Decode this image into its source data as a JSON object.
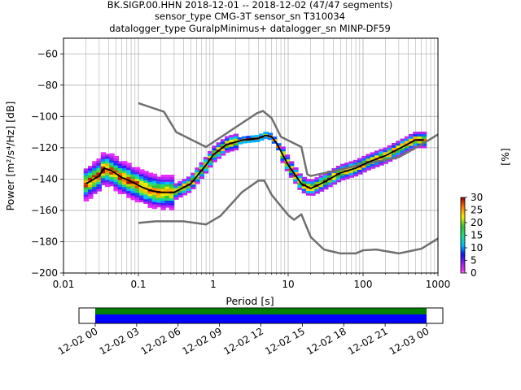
{
  "chart_data": {
    "type": "heatmap",
    "title": {
      "line1": "BK.SIGP.00.HHN   2018-12-01 -- 2018-12-02  (47/47 segments)",
      "line2": "sensor_type CMG-3T sensor_sn T310034",
      "line3": "datalogger_type GuralpMinimus+ datalogger_sn MINP-DF59"
    },
    "xlabel": "Period [s]",
    "ylabel": "Power [m²/s⁴/Hz] [dB]",
    "xscale": "log",
    "xlim": [
      0.01,
      1000
    ],
    "ylim": [
      -200,
      -50
    ],
    "grid": true,
    "x_ticks": [
      {
        "value": 0.01,
        "label": "0.01"
      },
      {
        "value": 0.1,
        "label": "0.1"
      },
      {
        "value": 1,
        "label": "1"
      },
      {
        "value": 10,
        "label": "10"
      },
      {
        "value": 100,
        "label": "100"
      },
      {
        "value": 1000,
        "label": "1000"
      }
    ],
    "y_ticks": [
      {
        "value": -60,
        "label": "−60"
      },
      {
        "value": -80,
        "label": "−80"
      },
      {
        "value": -100,
        "label": "−100"
      },
      {
        "value": -120,
        "label": "−120"
      },
      {
        "value": -140,
        "label": "−140"
      },
      {
        "value": -160,
        "label": "−160"
      },
      {
        "value": -180,
        "label": "−180"
      },
      {
        "value": -200,
        "label": "−200"
      }
    ],
    "noise_models": [
      {
        "name": "high",
        "color": "#707070",
        "x": [
          0.1,
          0.22,
          0.32,
          0.8,
          3.8,
          4.6,
          6,
          8,
          15,
          18,
          20,
          40,
          100,
          300,
          600,
          1000
        ],
        "y": [
          -91.5,
          -97,
          -110,
          -119.5,
          -98,
          -96.5,
          -101,
          -113,
          -119.5,
          -137,
          -138,
          -135,
          -130.5,
          -126,
          -118,
          -111.5
        ]
      },
      {
        "name": "low",
        "color": "#707070",
        "x": [
          0.1,
          0.17,
          0.4,
          0.8,
          1.25,
          2.4,
          4,
          4.8,
          6,
          10,
          12,
          15,
          20,
          30,
          50,
          80,
          100,
          150,
          300,
          600,
          1000
        ],
        "y": [
          -168,
          -167,
          -167,
          -169,
          -163.5,
          -148.5,
          -141,
          -141,
          -150,
          -163,
          -166,
          -162.5,
          -177,
          -185,
          -187.5,
          -187.5,
          -185.5,
          -185,
          -187.5,
          -184.5,
          -178
        ]
      }
    ],
    "mean_curve": {
      "color": "#000000",
      "x": [
        0.02,
        0.03,
        0.035,
        0.045,
        0.06,
        0.08,
        0.11,
        0.15,
        0.2,
        0.3,
        0.5,
        0.8,
        1,
        1.5,
        2.5,
        4,
        5,
        6,
        7,
        10,
        15,
        20,
        30,
        50,
        80,
        120,
        200,
        350,
        500,
        650
      ],
      "y": [
        -143,
        -138,
        -133,
        -135,
        -139,
        -141.5,
        -145,
        -147.5,
        -148.5,
        -148.5,
        -143,
        -131,
        -124.5,
        -118,
        -115,
        -114,
        -112,
        -113,
        -117,
        -131,
        -143,
        -146,
        -142,
        -136,
        -133,
        -129,
        -125,
        -119,
        -115,
        -115
      ]
    },
    "colorbar": {
      "label": "[%]",
      "min": 0,
      "max": 30,
      "ticks": [
        0,
        5,
        10,
        15,
        20,
        25,
        30
      ]
    },
    "timeline": {
      "tick_labels": [
        "12-02 00",
        "12-02 03",
        "12-02 06",
        "12-02 09",
        "12-02 12",
        "12-02 15",
        "12-02 18",
        "12-02 21",
        "12-03 00"
      ],
      "bar_colors": [
        "#008000",
        "#0000ff"
      ]
    }
  }
}
